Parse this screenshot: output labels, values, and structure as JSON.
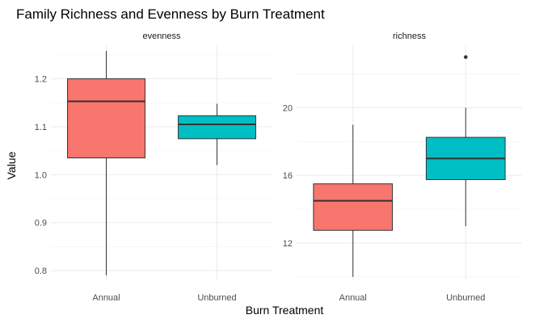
{
  "chart_data": {
    "type": "boxplot",
    "title": "Family Richness and Evenness by Burn Treatment",
    "xlabel": "Burn Treatment",
    "ylabel": "Value",
    "categories": [
      "Annual",
      "Unburned"
    ],
    "colors": {
      "Annual": "#F8766D",
      "Unburned": "#00BFC4"
    },
    "grid": true,
    "legend": "none",
    "panels": [
      {
        "name": "evenness",
        "ylim": [
          0.78,
          1.27
        ],
        "yticks": [
          0.8,
          0.9,
          1.0,
          1.1,
          1.2
        ],
        "ytick_labels": [
          "0.8",
          "0.9",
          "1.0",
          "1.1",
          "1.2"
        ],
        "boxes": [
          {
            "category": "Annual",
            "min": 0.79,
            "q1": 1.035,
            "median": 1.153,
            "q3": 1.2,
            "max": 1.258,
            "outliers": []
          },
          {
            "category": "Unburned",
            "min": 1.02,
            "q1": 1.075,
            "median": 1.105,
            "q3": 1.123,
            "max": 1.148,
            "outliers": []
          }
        ]
      },
      {
        "name": "richness",
        "ylim": [
          9.8,
          23.7
        ],
        "yticks": [
          12,
          16,
          20
        ],
        "ytick_labels": [
          "12",
          "16",
          "20"
        ],
        "boxes": [
          {
            "category": "Annual",
            "min": 10,
            "q1": 12.75,
            "median": 14.5,
            "q3": 15.5,
            "max": 19,
            "outliers": []
          },
          {
            "category": "Unburned",
            "min": 13,
            "q1": 15.75,
            "median": 17,
            "q3": 18.25,
            "max": 20,
            "outliers": [
              23
            ]
          }
        ]
      }
    ]
  }
}
